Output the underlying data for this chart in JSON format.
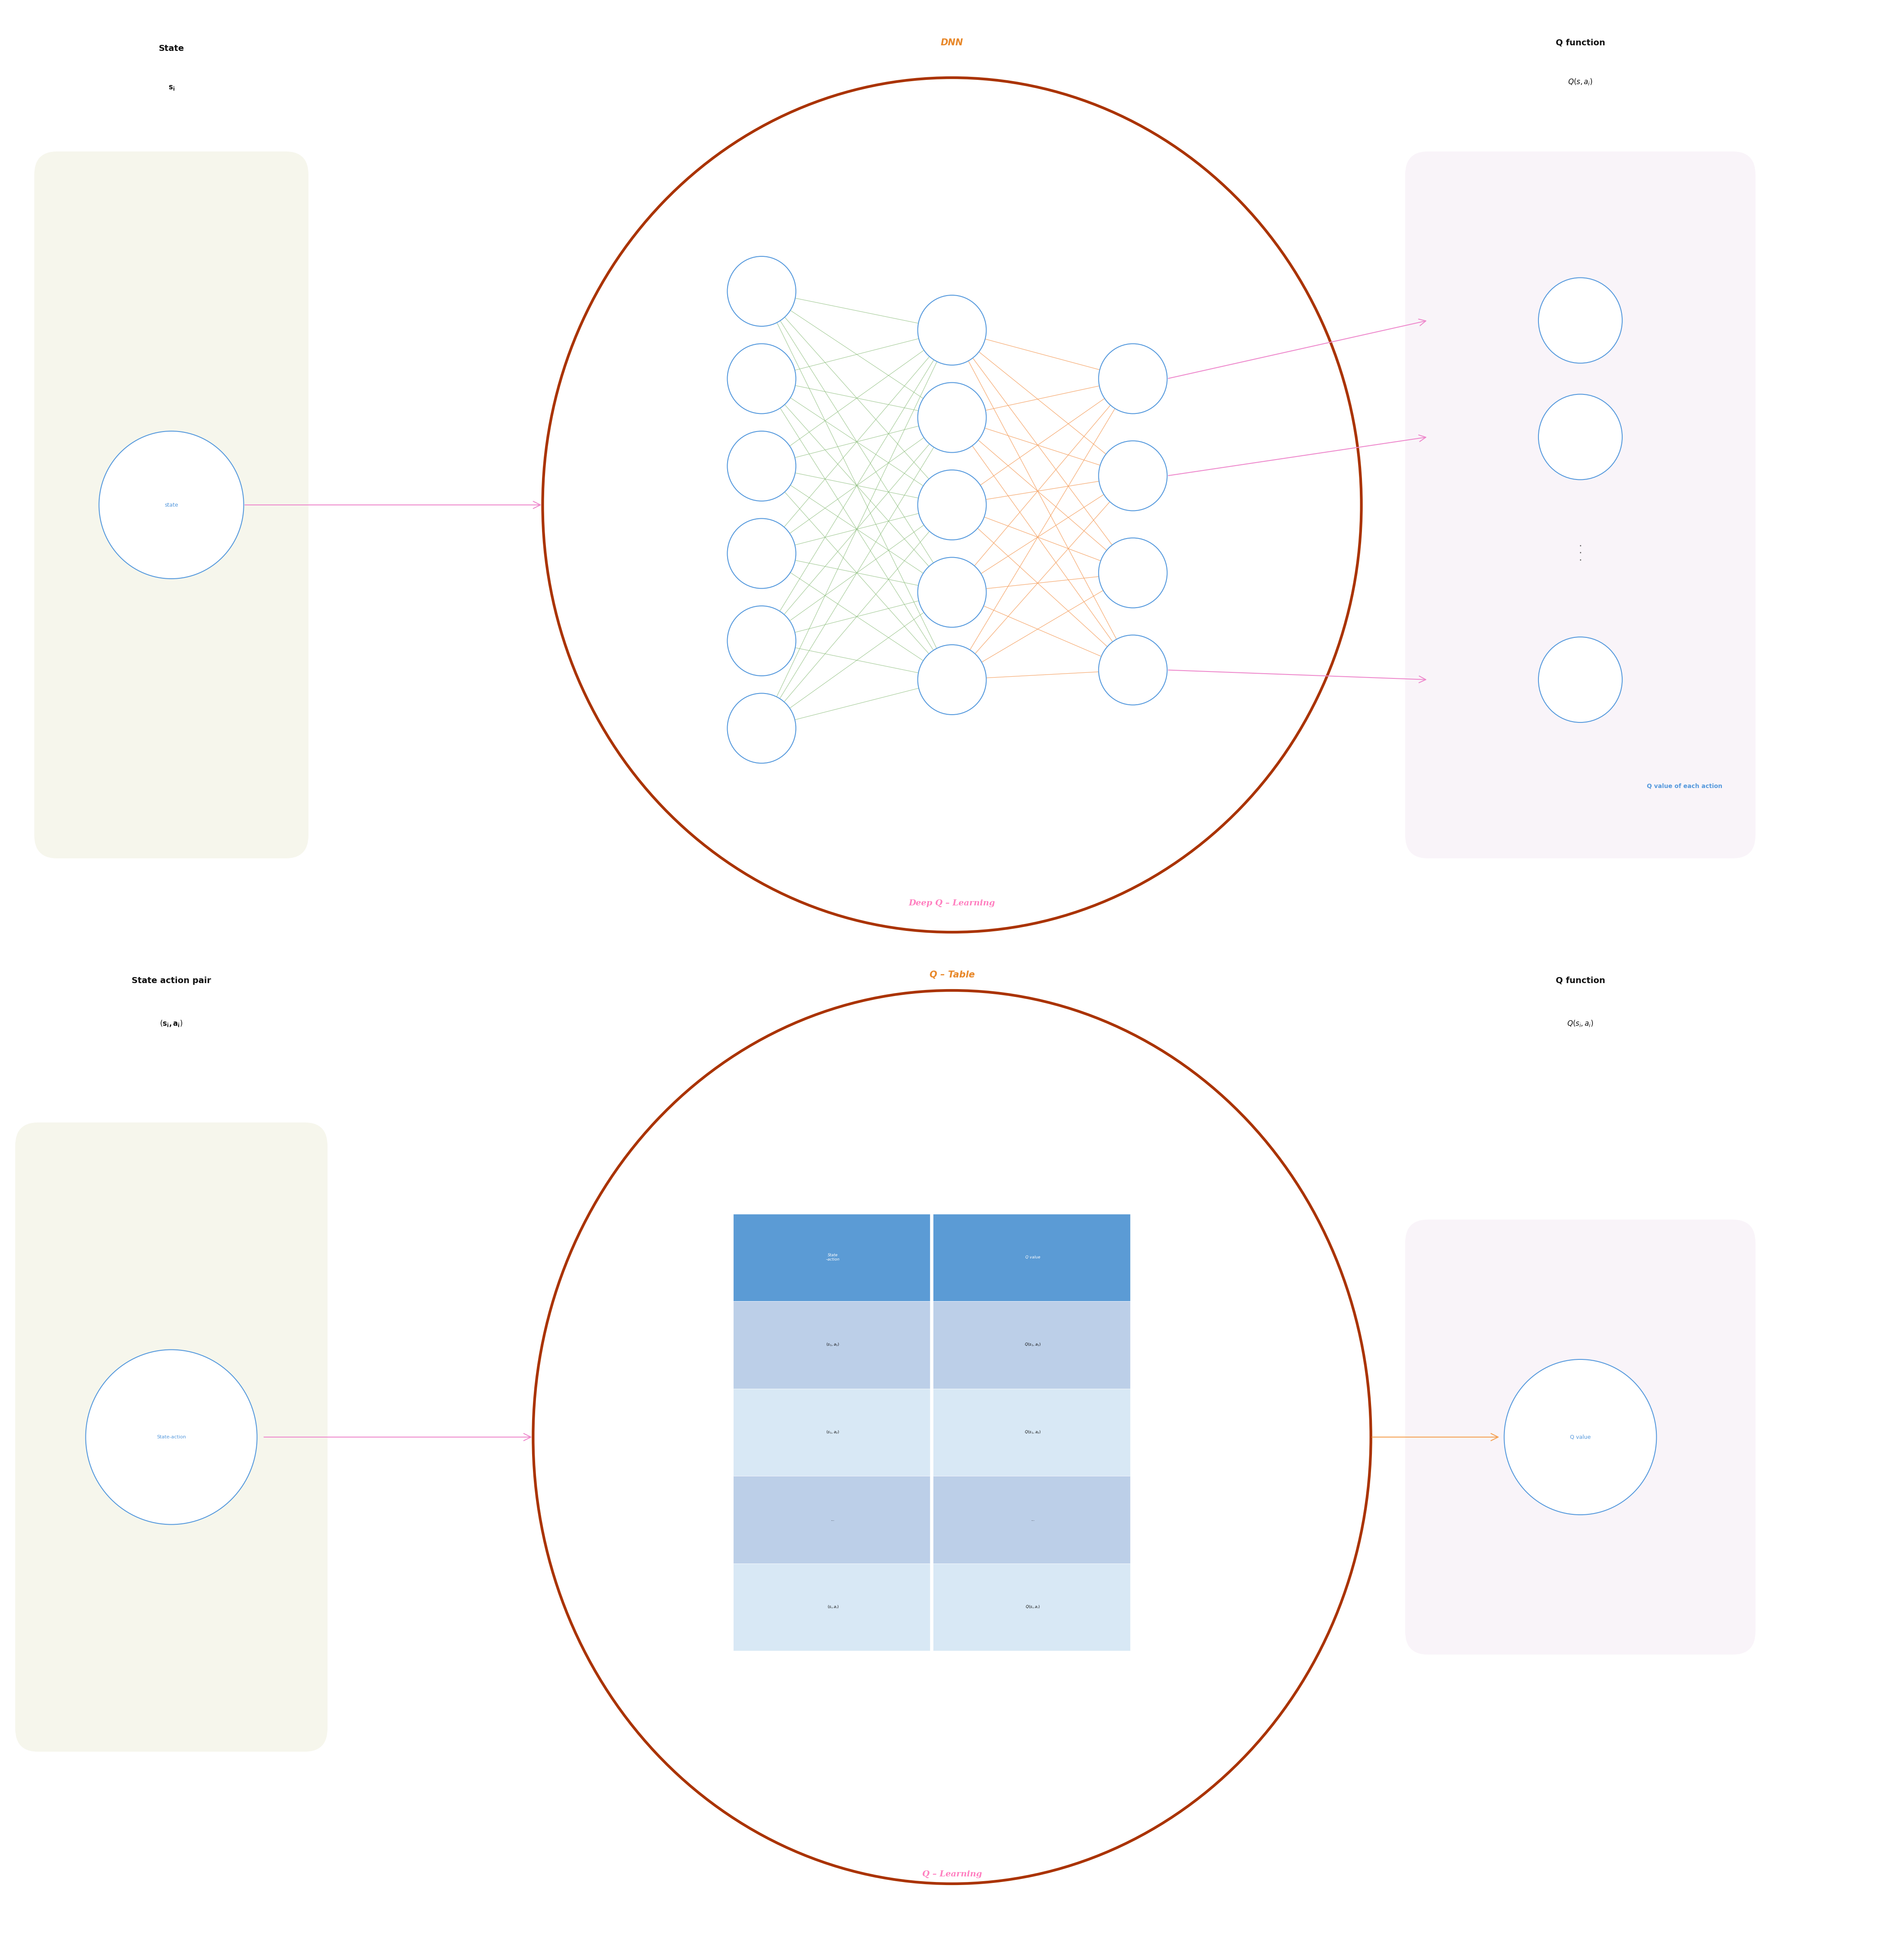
{
  "bg_color": "#ffffff",
  "title_color_orange": "#E8882A",
  "title_color_pink": "#FF80C0",
  "title_color_black": "#111111",
  "circle_border_color": "#5599DD",
  "circle_text_color": "#5599DD",
  "big_circle_color": "#AA3300",
  "green_conn_color": "#88BB77",
  "orange_conn_color": "#F5A060",
  "pink_arrow_color": "#EE88CC",
  "orange_arrow_color": "#F5A050",
  "state_box_color": "#F0F0E0",
  "qfunc_box_top_color": "#F5EAF5",
  "qfunc_box_bot_color": "#F5EAF5",
  "table_header_color": "#5B9BD5",
  "table_row_color1": "#BCCFE8",
  "table_row_color2": "#D8E8F5",
  "top_state_label": "State",
  "top_si_label": "$\\mathbf{s_i}$",
  "top_dnn_label": "DNN",
  "top_qfunc_label": "Q function",
  "top_qs_label": "$Q(s, a_i)$",
  "top_state_node": "state",
  "top_footer": "Deep Q – Learning",
  "top_qvalue_label": "Q value of each action",
  "bot_state_label": "State action pair",
  "bot_si_label": "$(\\mathbf{s_i, a_i})$",
  "bot_qtable_label": "Q – Table",
  "bot_qfunc_label": "Q function",
  "bot_qs_label": "$Q(s_i, a_i)$",
  "bot_state_node": "State-action",
  "bot_footer": "Q – Learning",
  "bot_qvalue_node": "Q value",
  "table_col1_header": "State\n–action",
  "table_col2_header": "Q value",
  "table_rows": [
    [
      "$(s_1, a_1)$",
      "$Q(s_1, a_1)$"
    ],
    [
      "$(s_1, a_2)$",
      "$Q(s_1, a_2)$"
    ],
    [
      "...",
      "..."
    ],
    [
      "$(s_i, a_i)$",
      "$Q(s_i, a_i)$"
    ]
  ]
}
